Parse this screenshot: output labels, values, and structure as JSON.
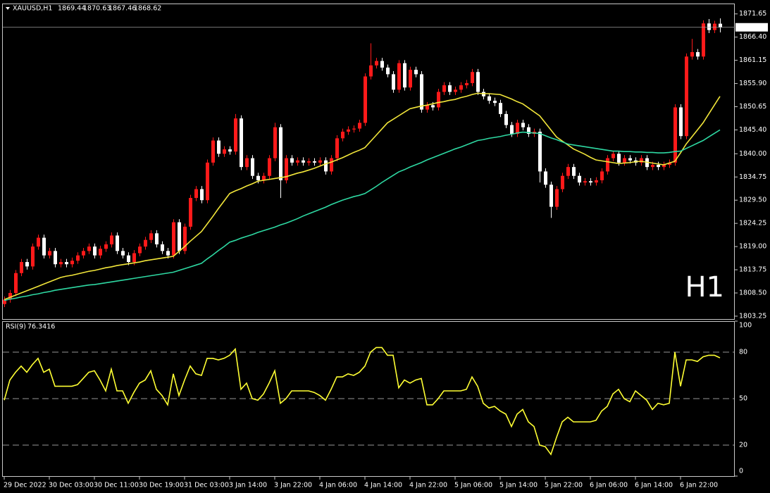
{
  "chart_data": [
    {
      "type": "candlestick",
      "title": "XAUUSD,H1",
      "watermark": "H1",
      "watermark_color": "#e8231b",
      "up_color": "#ff1a1a",
      "down_color": "#ffffff",
      "ylim": [
        1802.6,
        1874.0
      ],
      "yticks": [
        1803.25,
        {
          "value": 1808.5,
          "label": "1808.50"
        },
        1813.75,
        {
          "value": 1819,
          "label": "1819.00"
        },
        1824.25,
        {
          "value": 1829.5,
          "label": "1829.50"
        },
        1834.75,
        {
          "value": 1840,
          "label": "1840.00"
        },
        {
          "value": 1845.4,
          "label": "1845.40"
        },
        1850.65,
        {
          "value": 1855.9,
          "label": "1855.90"
        },
        1861.15,
        {
          "value": 1866.4,
          "label": "1866.40"
        },
        1871.65
      ],
      "categories": [
        "29 Dec 2022",
        null,
        null,
        null,
        null,
        null,
        null,
        null,
        "30 Dec 03:00",
        null,
        null,
        null,
        null,
        null,
        null,
        null,
        "30 Dec 11:00",
        null,
        null,
        null,
        null,
        null,
        null,
        null,
        "30 Dec 19:00",
        null,
        null,
        null,
        null,
        null,
        null,
        null,
        "31 Dec 03:00",
        null,
        null,
        null,
        null,
        null,
        null,
        null,
        "3 Jan 14:00",
        null,
        null,
        null,
        null,
        null,
        null,
        null,
        "3 Jan 22:00",
        null,
        null,
        null,
        null,
        null,
        null,
        null,
        "4 Jan 06:00",
        null,
        null,
        null,
        null,
        null,
        null,
        null,
        "4 Jan 14:00",
        null,
        null,
        null,
        null,
        null,
        null,
        null,
        "4 Jan 22:00",
        null,
        null,
        null,
        null,
        null,
        null,
        null,
        "5 Jan 06:00",
        null,
        null,
        null,
        null,
        null,
        null,
        null,
        "5 Jan 14:00",
        null,
        null,
        null,
        null,
        null,
        null,
        null,
        "5 Jan 22:00",
        null,
        null,
        null,
        null,
        null,
        null,
        null,
        "6 Jan 06:00",
        null,
        null,
        null,
        null,
        null,
        null,
        null,
        "6 Jan 14:00",
        null,
        null,
        null,
        null,
        null,
        null,
        null,
        "6 Jan 22:00",
        null,
        null,
        null,
        null,
        null,
        null,
        null
      ],
      "open": [
        1806.0,
        1807.0,
        1808.5,
        1813.0,
        1815.5,
        1814.5,
        1819.0,
        1821.0,
        1817.0,
        1818.0,
        1815.0,
        1815.5,
        1815.0,
        1815.8,
        1817.0,
        1818.0,
        1819.0,
        1817.0,
        1818.5,
        1819.5,
        1821.5,
        1818.0,
        1817.0,
        1815.5,
        1817.5,
        1819.0,
        1820.5,
        1822.0,
        1819.5,
        1818.0,
        1817.0,
        1824.5,
        1818.0,
        1823.5,
        1830.0,
        1832.0,
        1829.5,
        1838.0,
        1843.0,
        1840.0,
        1841.0,
        1840.5,
        1848.0,
        1837.0,
        1839.0,
        1835.0,
        1834.0,
        1835.0,
        1839.0,
        1846.0,
        1834.0,
        1839.0,
        1838.0,
        1838.5,
        1838.0,
        1838.3,
        1838.0,
        1838.5,
        1836.0,
        1839.0,
        1843.5,
        1845.0,
        1845.5,
        1845.7,
        1847.0,
        1857.5,
        1860.0,
        1861.0,
        1859.5,
        1858.0,
        1854.5,
        1860.5,
        1855.0,
        1859.0,
        1858.0,
        1850.0,
        1851.0,
        1850.5,
        1854.0,
        1855.5,
        1854.0,
        1854.5,
        1855.5,
        1856.0,
        1858.5,
        1854.0,
        1853.0,
        1852.0,
        1851.5,
        1849.0,
        1846.5,
        1844.5,
        1847.0,
        1846.0,
        1844.5,
        1845.0,
        1836.0,
        1833.0,
        1828.0,
        1832.0,
        1835.0,
        1837.0,
        1835.0,
        1833.5,
        1833.8,
        1833.5,
        1834.0,
        1836.0,
        1839.0,
        1840.0,
        1838.0,
        1839.0,
        1838.5,
        1838.0,
        1839.0,
        1837.0,
        1837.5,
        1837.0,
        1837.5,
        1838.0,
        1850.5,
        1844.0,
        1862.0,
        1863.0,
        1862.0,
        1869.5,
        1868.0,
        1869.44
      ],
      "high": [
        1807.7,
        1809.2,
        1813.7,
        1816.2,
        1816.2,
        1819.7,
        1821.7,
        1821.7,
        1818.7,
        1818.7,
        1816.2,
        1816.2,
        1816.5,
        1817.7,
        1818.7,
        1819.7,
        1819.7,
        1819.2,
        1820.2,
        1822.2,
        1822.2,
        1818.7,
        1817.7,
        1818.2,
        1819.7,
        1821.2,
        1822.7,
        1822.7,
        1820.2,
        1818.7,
        1825.2,
        1825.2,
        1824.2,
        1830.7,
        1832.7,
        1832.7,
        1838.7,
        1843.7,
        1843.7,
        1841.7,
        1841.7,
        1849.0,
        1848.7,
        1839.7,
        1839.7,
        1835.7,
        1835.7,
        1839.7,
        1847.0,
        1846.7,
        1839.7,
        1839.7,
        1839.2,
        1839.2,
        1839.0,
        1839.0,
        1839.2,
        1839.2,
        1839.7,
        1844.2,
        1845.7,
        1846.2,
        1846.4,
        1847.7,
        1858.2,
        1865.0,
        1861.7,
        1861.7,
        1860.2,
        1858.7,
        1861.2,
        1861.2,
        1859.7,
        1859.7,
        1858.7,
        1851.7,
        1851.7,
        1854.7,
        1856.2,
        1856.2,
        1855.2,
        1856.2,
        1856.7,
        1859.2,
        1859.2,
        1854.7,
        1853.7,
        1852.7,
        1852.2,
        1849.7,
        1847.2,
        1847.7,
        1847.7,
        1846.7,
        1845.7,
        1845.7,
        1836.7,
        1833.7,
        1832.7,
        1835.7,
        1837.7,
        1837.7,
        1835.7,
        1834.5,
        1834.5,
        1834.7,
        1836.7,
        1839.7,
        1840.7,
        1840.7,
        1839.7,
        1839.7,
        1839.2,
        1839.7,
        1839.7,
        1838.2,
        1838.2,
        1838.2,
        1838.7,
        1851.2,
        1851.2,
        1862.7,
        1866.0,
        1863.7,
        1870.2,
        1870.5,
        1870.1,
        1870.63
      ],
      "low": [
        1805.3,
        1806.3,
        1807.8,
        1812.3,
        1813.8,
        1813.8,
        1818.3,
        1816.3,
        1816.3,
        1814.3,
        1814.3,
        1814.3,
        1814.3,
        1815.1,
        1816.3,
        1817.3,
        1816.3,
        1816.3,
        1817.8,
        1818.8,
        1817.3,
        1816.3,
        1814.8,
        1814.8,
        1816.8,
        1818.3,
        1819.8,
        1818.8,
        1817.3,
        1816.3,
        1816.3,
        1817.3,
        1817.3,
        1822.8,
        1829.3,
        1828.8,
        1828.8,
        1837.3,
        1839.3,
        1839.3,
        1839.8,
        1839.8,
        1836.3,
        1836.3,
        1834.3,
        1833.3,
        1833.3,
        1834.3,
        1838.3,
        1830.0,
        1833.3,
        1837.3,
        1837.3,
        1837.3,
        1837.3,
        1837.3,
        1837.3,
        1835.3,
        1835.3,
        1838.3,
        1842.8,
        1844.3,
        1844.8,
        1845.0,
        1846.3,
        1856.8,
        1859.3,
        1858.8,
        1857.3,
        1853.8,
        1853.8,
        1854.3,
        1854.3,
        1857.3,
        1849.3,
        1849.3,
        1849.8,
        1849.8,
        1853.3,
        1853.3,
        1853.3,
        1853.8,
        1854.8,
        1855.3,
        1853.3,
        1852.3,
        1851.3,
        1850.8,
        1848.3,
        1845.8,
        1843.8,
        1843.8,
        1845.3,
        1843.8,
        1843.8,
        1833.5,
        1832.3,
        1825.5,
        1827.3,
        1831.3,
        1834.3,
        1834.3,
        1832.8,
        1832.8,
        1832.8,
        1832.8,
        1833.3,
        1835.3,
        1838.3,
        1837.3,
        1837.3,
        1837.8,
        1837.3,
        1837.3,
        1836.3,
        1836.3,
        1836.3,
        1836.3,
        1836.8,
        1837.3,
        1843.3,
        1843.3,
        1861.3,
        1861.3,
        1861.3,
        1867.3,
        1867.3,
        1867.46
      ],
      "close": [
        1807.0,
        1808.5,
        1813.0,
        1815.5,
        1814.5,
        1819.0,
        1821.0,
        1817.0,
        1818.0,
        1815.0,
        1815.5,
        1815.0,
        1815.8,
        1817.0,
        1818.0,
        1819.0,
        1817.0,
        1818.5,
        1819.5,
        1821.5,
        1818.0,
        1817.0,
        1815.5,
        1817.5,
        1819.0,
        1820.5,
        1822.0,
        1819.5,
        1818.0,
        1817.0,
        1824.5,
        1818.0,
        1823.5,
        1830.0,
        1832.0,
        1829.5,
        1838.0,
        1843.0,
        1840.0,
        1841.0,
        1840.5,
        1848.0,
        1837.0,
        1839.0,
        1835.0,
        1834.0,
        1835.0,
        1839.0,
        1846.0,
        1834.0,
        1839.0,
        1838.0,
        1838.5,
        1838.0,
        1838.3,
        1838.0,
        1838.5,
        1836.0,
        1839.0,
        1843.5,
        1845.0,
        1845.5,
        1845.7,
        1847.0,
        1857.5,
        1860.0,
        1861.0,
        1859.5,
        1858.0,
        1854.5,
        1860.5,
        1855.0,
        1859.0,
        1858.0,
        1850.0,
        1851.0,
        1850.5,
        1854.0,
        1855.5,
        1854.0,
        1854.5,
        1855.5,
        1856.0,
        1858.5,
        1854.0,
        1853.0,
        1852.0,
        1851.5,
        1849.0,
        1846.5,
        1844.5,
        1847.0,
        1846.0,
        1844.5,
        1845.0,
        1836.0,
        1833.0,
        1828.0,
        1832.0,
        1835.0,
        1837.0,
        1835.0,
        1833.5,
        1833.8,
        1833.5,
        1834.0,
        1836.0,
        1839.0,
        1840.0,
        1838.0,
        1839.0,
        1838.5,
        1838.0,
        1839.0,
        1837.0,
        1837.5,
        1837.0,
        1837.5,
        1838.0,
        1850.5,
        1844.0,
        1862.0,
        1863.0,
        1862.0,
        1869.5,
        1868.0,
        1869.44,
        1868.62
      ],
      "series": [
        {
          "color": "#f2e63a",
          "values": [
            1807,
            1807.5,
            1808,
            1808.5,
            1809,
            1809.5,
            1810,
            1810.5,
            1811,
            1811.5,
            1812,
            1812.3,
            1812.5,
            1812.8,
            1813.1,
            1813.4,
            1813.6,
            1813.9,
            1814.2,
            1814.4,
            1814.7,
            1814.9,
            1815.1,
            1815.3,
            1815.5,
            1815.8,
            1816,
            1816.2,
            1816.4,
            1816.6,
            1816.8,
            1817.9,
            1819,
            1820.2,
            1821.3,
            1822.4,
            1824.1,
            1825.8,
            1827.6,
            1829.3,
            1831,
            1831.6,
            1832.1,
            1832.7,
            1833.2,
            1833.8,
            1834,
            1834.2,
            1834.4,
            1834.6,
            1834.8,
            1835.2,
            1835.6,
            1835.9,
            1836.3,
            1836.7,
            1837.2,
            1837.7,
            1838.1,
            1838.6,
            1839.1,
            1839.7,
            1840.3,
            1840.8,
            1841.4,
            1842.8,
            1844.2,
            1845.6,
            1847,
            1847.8,
            1848.6,
            1849.4,
            1850.2,
            1850.5,
            1850.8,
            1851,
            1851.3,
            1851.6,
            1851.8,
            1852.1,
            1852.3,
            1852.7,
            1853,
            1853.4,
            1853.7,
            1853.6,
            1853.6,
            1853.5,
            1853.4,
            1852.9,
            1852.4,
            1851.8,
            1851.3,
            1850.4,
            1849.5,
            1848.6,
            1847,
            1845.4,
            1843.8,
            1842.9,
            1842,
            1841.1,
            1840.5,
            1839.9,
            1839.2,
            1838.6,
            1838.4,
            1838.2,
            1838,
            1837.8,
            1837.9,
            1838,
            1838.2,
            1838.3,
            1838.1,
            1837.9,
            1837.7,
            1837.5,
            1837.9,
            1838.3,
            1840.2,
            1842.2,
            1843.8,
            1845.4,
            1847,
            1849,
            1851,
            1853
          ]
        },
        {
          "color": "#2ed8a2",
          "values": [
            1806.8,
            1807.1,
            1807.3,
            1807.6,
            1807.8,
            1808.1,
            1808.3,
            1808.6,
            1808.8,
            1809.1,
            1809.3,
            1809.5,
            1809.7,
            1809.9,
            1810.1,
            1810.3,
            1810.4,
            1810.6,
            1810.8,
            1811,
            1811.2,
            1811.4,
            1811.6,
            1811.8,
            1812,
            1812.2,
            1812.4,
            1812.6,
            1812.8,
            1813,
            1813.2,
            1813.6,
            1814,
            1814.4,
            1814.8,
            1815.2,
            1816.2,
            1817.1,
            1818.1,
            1819,
            1820,
            1820.4,
            1820.9,
            1821.3,
            1821.7,
            1822.2,
            1822.6,
            1823,
            1823.4,
            1823.9,
            1824.3,
            1824.8,
            1825.3,
            1825.9,
            1826.4,
            1826.9,
            1827.4,
            1827.9,
            1828.5,
            1829,
            1829.5,
            1829.9,
            1830.3,
            1830.6,
            1831,
            1831.8,
            1832.6,
            1833.5,
            1834.3,
            1835.1,
            1835.9,
            1836.4,
            1837,
            1837.5,
            1838,
            1838.6,
            1839.1,
            1839.6,
            1840.1,
            1840.6,
            1841.1,
            1841.5,
            1842,
            1842.5,
            1843,
            1843.2,
            1843.5,
            1843.7,
            1843.9,
            1844.2,
            1844.4,
            1844.7,
            1844.9,
            1844.8,
            1844.7,
            1844.6,
            1844.1,
            1843.6,
            1843.2,
            1842.7,
            1842.2,
            1842,
            1841.8,
            1841.6,
            1841.4,
            1841.2,
            1841,
            1840.8,
            1840.6,
            1840.6,
            1840.5,
            1840.5,
            1840.4,
            1840.4,
            1840.3,
            1840.3,
            1840.2,
            1840.2,
            1840.3,
            1840.5,
            1840.6,
            1841.2,
            1841.8,
            1842.4,
            1843,
            1843.8,
            1844.6,
            1845.4
          ]
        }
      ]
    },
    {
      "type": "line",
      "title": "RSI(9)",
      "ylim": [
        0,
        100
      ],
      "yticks": [
        0,
        20,
        50,
        80,
        100
      ],
      "series": [
        {
          "color": "#ffff33",
          "values": [
            49,
            62,
            67,
            71,
            67,
            72,
            76,
            67,
            69,
            58,
            58,
            58,
            58,
            59,
            63,
            67,
            68,
            62,
            55,
            69,
            55,
            55,
            47,
            54,
            60,
            62,
            68,
            56,
            52,
            46,
            66,
            52,
            62,
            71,
            66,
            65,
            76,
            76,
            75,
            76,
            78,
            82,
            56,
            60,
            50,
            49,
            53,
            60,
            68,
            47,
            50,
            55,
            55,
            55,
            55,
            54,
            52,
            49,
            56,
            64,
            64,
            66,
            65,
            67,
            71,
            80,
            83,
            83,
            78,
            78,
            57,
            62,
            60,
            62,
            63,
            46,
            46,
            50,
            55,
            55,
            55,
            55,
            56,
            64,
            58,
            47,
            44,
            45,
            42,
            40,
            32,
            40,
            43,
            35,
            32,
            20,
            19,
            14,
            25,
            35,
            38,
            35,
            35,
            35,
            35,
            36,
            42,
            45,
            53,
            56,
            50,
            48,
            55,
            52,
            49,
            43,
            47,
            46,
            47,
            80,
            58,
            75,
            75,
            74,
            77,
            78,
            78,
            76.3416
          ]
        }
      ]
    }
  ]
}
